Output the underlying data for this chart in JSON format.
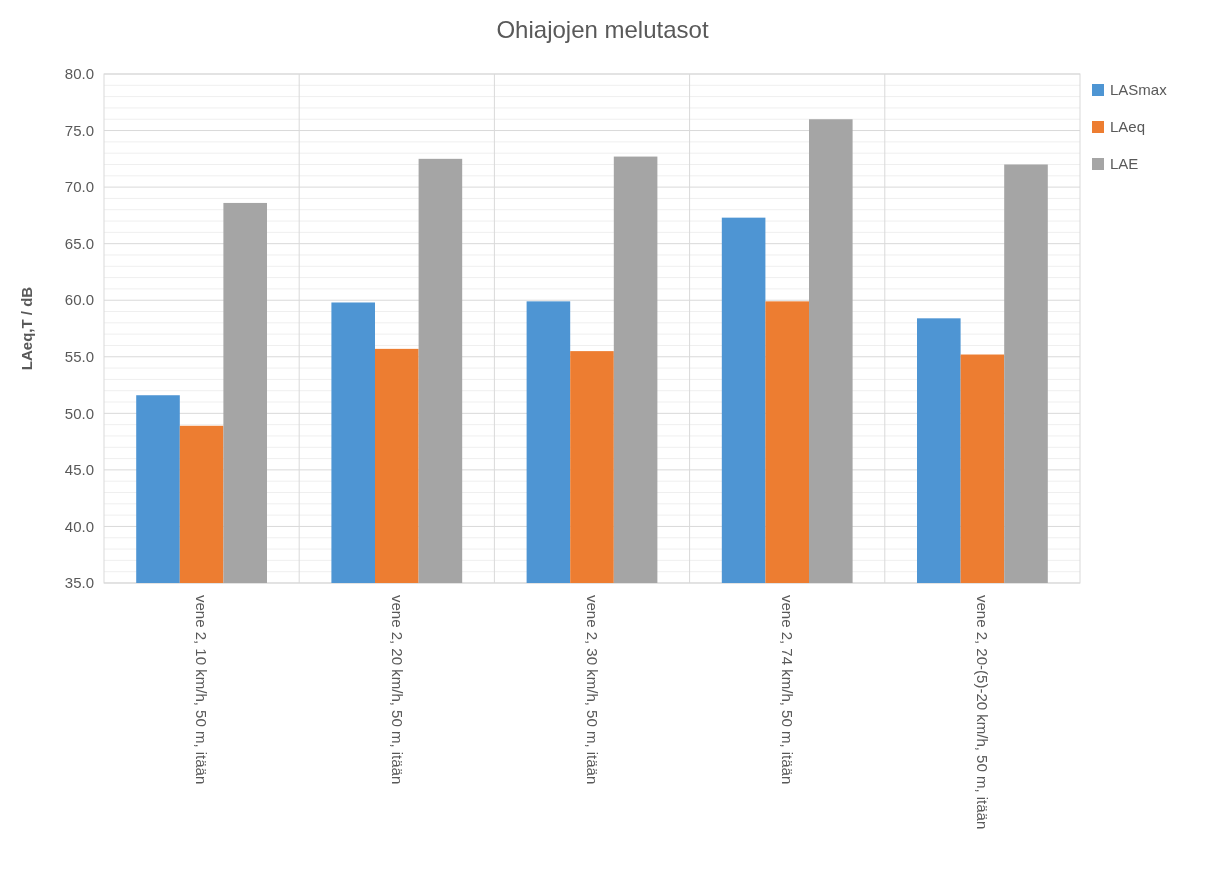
{
  "chart_data": {
    "type": "bar",
    "title": "Ohiajojen melutasot",
    "ylabel": "LAeq,T / dB",
    "categories": [
      "vene 2, 10 km/h, 50 m, itään",
      "vene 2, 20 km/h, 50 m, itään",
      "vene 2, 30 km/h, 50 m, itään",
      "vene 2, 74 km/h, 50 m, itään",
      "vene 2, 20-(5)-20 km/h, 50 m, itään"
    ],
    "series": [
      {
        "name": "LASmax",
        "color": "#4e95d3",
        "values": [
          51.6,
          59.8,
          59.9,
          67.3,
          58.4
        ]
      },
      {
        "name": "LAeq",
        "color": "#ed7d31",
        "values": [
          48.9,
          55.7,
          55.5,
          59.9,
          55.2
        ]
      },
      {
        "name": "LAE",
        "color": "#a5a5a5",
        "values": [
          68.6,
          72.5,
          72.7,
          76.0,
          72.0
        ]
      }
    ],
    "ylim": [
      35,
      80
    ],
    "yticks": [
      {
        "value": 35,
        "label": "35.0"
      },
      {
        "value": 40,
        "label": "40.0"
      },
      {
        "value": 45,
        "label": "45.0"
      },
      {
        "value": 50,
        "label": "50.0"
      },
      {
        "value": 55,
        "label": "55.0"
      },
      {
        "value": 60,
        "label": "60.0"
      },
      {
        "value": 65,
        "label": "65.0"
      },
      {
        "value": 70,
        "label": "70.0"
      },
      {
        "value": 75,
        "label": "75.0"
      },
      {
        "value": 80,
        "label": "80.0"
      }
    ],
    "grid": true,
    "legend": "right"
  }
}
